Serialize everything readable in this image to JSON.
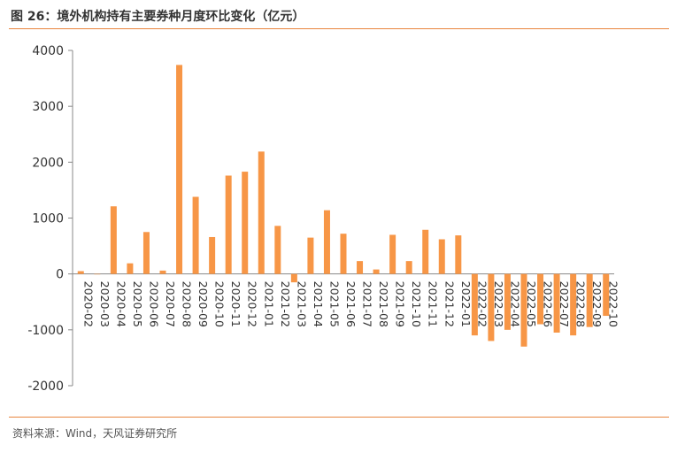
{
  "header": {
    "title": "图 26：境外机构持有主要券种月度环比变化（亿元）"
  },
  "footer": {
    "source": "资料来源：Wind，天风证券研究所"
  },
  "colors": {
    "bar": "#F79646",
    "accent_rule": "#E8853D",
    "axis": "#888888",
    "text": "#333333"
  },
  "chart_data": {
    "type": "bar",
    "title": "",
    "xlabel": "",
    "ylabel": "",
    "ylim": [
      -2000,
      4000
    ],
    "yticks": [
      -2000,
      -1000,
      0,
      1000,
      2000,
      3000,
      4000
    ],
    "grid": false,
    "legend": "none",
    "categories": [
      "2020-02",
      "2020-03",
      "2020-04",
      "2020-05",
      "2020-06",
      "2020-07",
      "2020-08",
      "2020-09",
      "2020-10",
      "2020-11",
      "2020-12",
      "2021-01",
      "2021-02",
      "2021-03",
      "2021-04",
      "2021-05",
      "2021-06",
      "2021-07",
      "2021-08",
      "2021-09",
      "2021-10",
      "2021-11",
      "2021-12",
      "2022-01",
      "2022-02",
      "2022-03",
      "2022-04",
      "2022-05",
      "2022-06",
      "2022-07",
      "2022-08",
      "2022-09",
      "2022-10"
    ],
    "values": [
      50,
      0,
      1210,
      190,
      750,
      60,
      3740,
      1380,
      660,
      1760,
      1830,
      2190,
      860,
      -150,
      650,
      1140,
      720,
      230,
      80,
      700,
      230,
      790,
      620,
      690,
      -1100,
      -1200,
      -1000,
      -1300,
      -900,
      -1050,
      -1100,
      -950,
      -750
    ]
  }
}
